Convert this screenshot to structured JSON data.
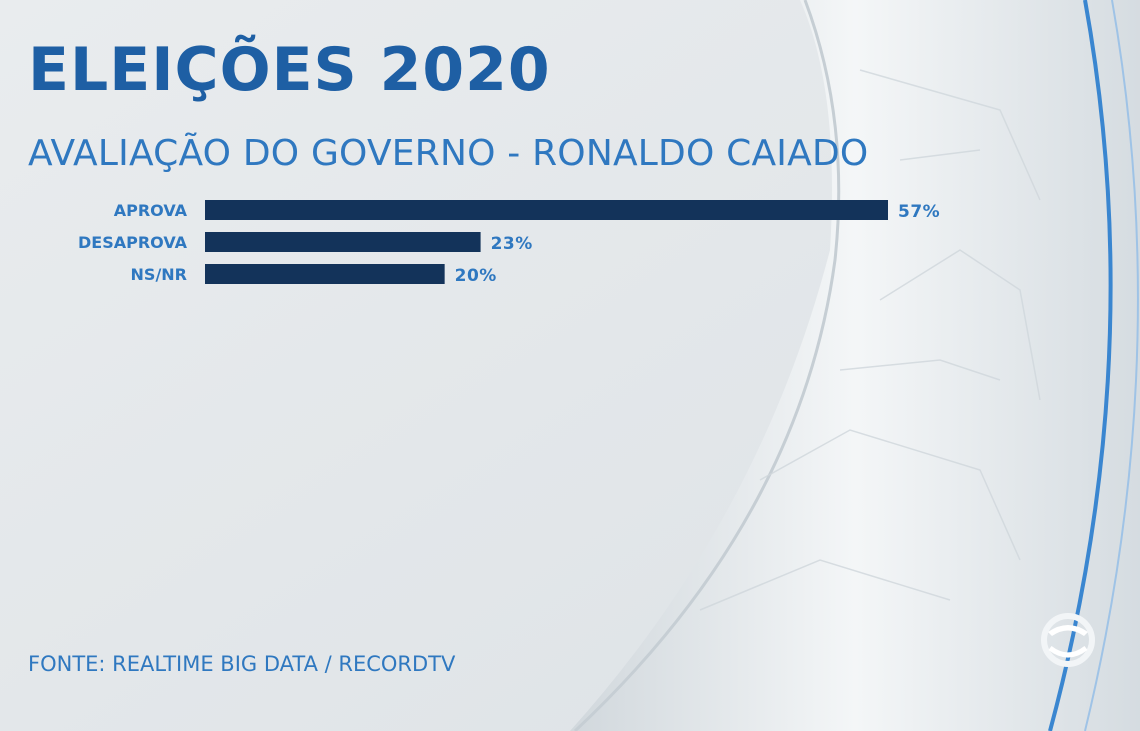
{
  "header": {
    "title": "ELEIÇÕES 2020",
    "subtitle": "AVALIAÇÃO DO GOVERNO - RONALDO CAIADO"
  },
  "footer": {
    "source": "FONTE: REALTIME BIG DATA / RECORDTV"
  },
  "branding": {
    "logo_icon": "recordtv-logo-icon"
  },
  "colors": {
    "background": "#e4e8ea",
    "bar": "#13335a",
    "title": "#1e5fa4",
    "text": "#2f78c0",
    "accent_ring": "#3a86d0"
  },
  "chart_data": {
    "type": "bar",
    "orientation": "horizontal",
    "categories": [
      "APROVA",
      "DESAPROVA",
      "NS/NR"
    ],
    "values": [
      57,
      23,
      20
    ],
    "value_labels": [
      "57%",
      "23%",
      "20%"
    ],
    "unit": "%",
    "xlim": [
      0,
      57
    ],
    "grid": false,
    "legend": "none"
  }
}
